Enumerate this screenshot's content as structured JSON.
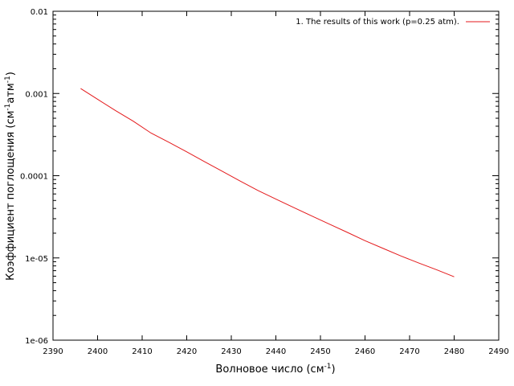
{
  "chart_data": {
    "type": "line",
    "xlabel": "Волновое число (см",
    "xlabel_sup": "-1",
    "xlabel_end": ")",
    "ylabel_pre": "Коэффициент поглощения (см",
    "ylabel_sup1": "-1",
    "ylabel_mid": "атм",
    "ylabel_sup2": "-1",
    "ylabel_end": ")",
    "xlim": [
      2390,
      2490
    ],
    "ylim": [
      1e-06,
      0.01
    ],
    "yscale": "log",
    "x_ticks": [
      2390,
      2400,
      2410,
      2420,
      2430,
      2440,
      2450,
      2460,
      2470,
      2480,
      2490
    ],
    "x_tick_labels": [
      "2390",
      "2400",
      "2410",
      "2420",
      "2430",
      "2440",
      "2450",
      "2460",
      "2470",
      "2480",
      "2490"
    ],
    "y_ticks": [
      1e-06,
      1e-05,
      0.0001,
      0.001,
      0.01
    ],
    "y_tick_labels": [
      "1e-06",
      "1e-05",
      "0.0001",
      "0.001",
      "0.01"
    ],
    "grid": false,
    "legend_position": "top-right",
    "series": [
      {
        "name": "1. The results of this work (p=0.25 atm).",
        "color": "#e41a1c",
        "x": [
          2396.2,
          2400,
          2404,
          2408,
          2412,
          2416,
          2420,
          2424,
          2428,
          2432,
          2436,
          2440,
          2444,
          2448,
          2452,
          2456,
          2460,
          2464,
          2468,
          2472,
          2476,
          2480
        ],
        "y": [
          0.00115,
          0.00085,
          0.00062,
          0.00046,
          0.00033,
          0.000255,
          0.000195,
          0.000148,
          0.000113,
          8.6e-05,
          6.6e-05,
          5.2e-05,
          4.1e-05,
          3.25e-05,
          2.58e-05,
          2.05e-05,
          1.62e-05,
          1.31e-05,
          1.06e-05,
          8.7e-06,
          7.2e-06,
          5.9e-06
        ]
      }
    ]
  }
}
